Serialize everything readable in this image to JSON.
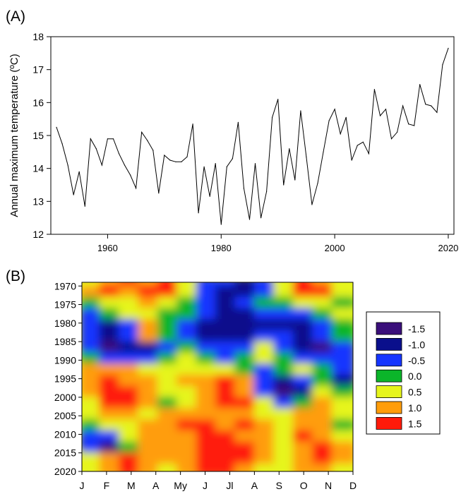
{
  "chart_data": [
    {
      "type": "line",
      "panel_label": "(A)",
      "ylabel": "Annual maximum temperature (ºC)",
      "xlabel": "",
      "xlim": [
        1950,
        2021
      ],
      "ylim": [
        12,
        18
      ],
      "xticks": [
        1960,
        1980,
        2000,
        2020
      ],
      "yticks": [
        12,
        13,
        14,
        15,
        16,
        17,
        18
      ],
      "x": [
        1951,
        1952,
        1953,
        1954,
        1955,
        1956,
        1957,
        1958,
        1959,
        1960,
        1961,
        1962,
        1963,
        1964,
        1965,
        1966,
        1967,
        1968,
        1969,
        1970,
        1971,
        1972,
        1973,
        1974,
        1975,
        1976,
        1977,
        1978,
        1979,
        1980,
        1981,
        1982,
        1983,
        1984,
        1985,
        1986,
        1987,
        1988,
        1989,
        1990,
        1991,
        1992,
        1993,
        1994,
        1995,
        1996,
        1997,
        1998,
        1999,
        2000,
        2001,
        2002,
        2003,
        2004,
        2005,
        2006,
        2007,
        2008,
        2009,
        2010,
        2011,
        2012,
        2013,
        2014,
        2015,
        2016,
        2017,
        2018,
        2019,
        2020
      ],
      "y": [
        15.25,
        14.75,
        14.1,
        13.2,
        13.9,
        12.85,
        14.9,
        14.6,
        14.1,
        14.9,
        14.9,
        14.45,
        14.1,
        13.8,
        13.4,
        15.1,
        14.85,
        14.55,
        13.25,
        14.4,
        14.25,
        14.2,
        14.2,
        14.35,
        15.35,
        12.65,
        14.05,
        13.15,
        14.15,
        12.3,
        14.05,
        14.3,
        15.4,
        13.4,
        12.45,
        14.15,
        12.5,
        13.3,
        15.55,
        16.1,
        13.5,
        14.6,
        13.65,
        15.75,
        14.35,
        12.9,
        13.55,
        14.5,
        15.45,
        15.8,
        15.05,
        15.55,
        14.25,
        14.7,
        14.8,
        14.45,
        16.4,
        15.6,
        15.8,
        14.9,
        15.1,
        15.9,
        15.35,
        15.3,
        16.55,
        15.95,
        15.9,
        15.7,
        17.15,
        17.65
      ],
      "grid": false
    },
    {
      "type": "heatmap",
      "panel_label": "(B)",
      "xticks": [
        "J",
        "F",
        "M",
        "A",
        "My",
        "J",
        "Jl",
        "A",
        "S",
        "O",
        "N",
        "D"
      ],
      "yticks": [
        1970,
        1975,
        1980,
        1985,
        1990,
        1995,
        2000,
        2005,
        2010,
        2015,
        2020
      ],
      "ylim": [
        2020,
        1969
      ],
      "legend": {
        "position": "right",
        "entries": [
          {
            "label": "-1.5",
            "color": "#3a0f7a"
          },
          {
            "label": "-1.0",
            "color": "#0a0f8c"
          },
          {
            "label": "-0.5",
            "color": "#1535ff"
          },
          {
            "label": "0.0",
            "color": "#0bb52a"
          },
          {
            "label": "0.5",
            "color": "#e6f51c"
          },
          {
            "label": "1.0",
            "color": "#ff9d0a"
          },
          {
            "label": "1.5",
            "color": "#ff1a0a"
          }
        ]
      },
      "years": [
        1969,
        1972,
        1975,
        1978,
        1981,
        1984,
        1987,
        1990,
        1993,
        1996,
        1999,
        2002,
        2005,
        2008,
        2011,
        2014,
        2017,
        2020
      ],
      "values": [
        [
          0.5,
          1.0,
          1.5,
          1.0,
          1.5,
          0.5,
          -0.5,
          -0.5,
          -1.0,
          -0.5,
          0.5,
          1.5,
          1.0,
          0.5
        ],
        [
          1.0,
          1.5,
          1.0,
          1.5,
          1.5,
          0.5,
          -0.5,
          -1.0,
          -1.0,
          -0.5,
          0.5,
          1.5,
          1.5,
          0.5
        ],
        [
          0.0,
          0.5,
          0.5,
          1.0,
          0.5,
          0.0,
          -0.5,
          -1.0,
          -0.5,
          0.0,
          0.0,
          0.5,
          0.5,
          0.0
        ],
        [
          -0.5,
          0.0,
          0.5,
          0.5,
          0.0,
          0.0,
          -0.5,
          -1.0,
          -1.0,
          -0.5,
          -0.5,
          -0.5,
          0.0,
          0.5
        ],
        [
          -0.5,
          -1.0,
          -0.5,
          1.0,
          0.0,
          -0.5,
          -1.0,
          -1.0,
          -1.0,
          -1.0,
          -1.0,
          -1.0,
          -0.5,
          0.0
        ],
        [
          -0.5,
          -1.0,
          -0.5,
          1.0,
          0.0,
          -0.5,
          -1.0,
          -1.0,
          -1.0,
          -0.5,
          -0.5,
          -1.0,
          -0.5,
          0.0
        ],
        [
          -0.5,
          -1.5,
          -1.0,
          -1.0,
          -0.5,
          0.0,
          -0.5,
          -0.5,
          -0.5,
          0.5,
          -0.5,
          -1.0,
          -1.5,
          -0.5
        ],
        [
          0.0,
          -0.5,
          -0.5,
          -0.5,
          0.0,
          0.5,
          0.0,
          -0.5,
          0.0,
          0.5,
          0.0,
          -0.5,
          -0.5,
          -0.5
        ],
        [
          1.0,
          1.0,
          1.0,
          0.5,
          0.5,
          0.5,
          0.5,
          0.5,
          0.0,
          -0.5,
          0.0,
          0.5,
          0.0,
          -0.5
        ],
        [
          1.0,
          1.5,
          1.0,
          1.0,
          0.5,
          1.0,
          1.0,
          1.5,
          1.0,
          -0.5,
          -1.0,
          -0.5,
          0.0,
          -1.0
        ],
        [
          1.0,
          1.5,
          1.5,
          1.0,
          0.5,
          0.5,
          1.0,
          1.5,
          1.0,
          -0.5,
          -1.5,
          -1.0,
          0.5,
          0.0
        ],
        [
          0.5,
          1.5,
          1.5,
          1.0,
          0.0,
          0.5,
          1.0,
          1.5,
          1.5,
          0.5,
          -0.5,
          0.0,
          1.0,
          0.5
        ],
        [
          0.5,
          1.0,
          1.0,
          0.5,
          1.0,
          1.0,
          1.0,
          1.0,
          1.0,
          0.5,
          0.5,
          1.0,
          1.0,
          0.5
        ],
        [
          0.0,
          0.5,
          0.5,
          1.0,
          1.0,
          1.5,
          1.5,
          1.0,
          1.5,
          1.0,
          0.5,
          1.0,
          1.0,
          0.0
        ],
        [
          -0.5,
          -0.5,
          0.5,
          1.0,
          1.0,
          1.0,
          1.5,
          1.5,
          1.0,
          1.0,
          0.5,
          1.5,
          1.0,
          0.5
        ],
        [
          -0.5,
          -1.5,
          0.0,
          1.0,
          1.0,
          1.0,
          1.5,
          1.5,
          1.5,
          1.0,
          0.5,
          1.0,
          1.5,
          1.0
        ],
        [
          0.5,
          1.0,
          1.5,
          1.0,
          1.0,
          1.0,
          1.5,
          1.5,
          1.5,
          1.0,
          0.5,
          1.0,
          1.5,
          1.0
        ],
        [
          0.5,
          1.0,
          1.5,
          1.0,
          0.5,
          1.0,
          1.5,
          1.5,
          1.0,
          0.5,
          0.5,
          1.0,
          1.0,
          0.5
        ]
      ]
    }
  ]
}
